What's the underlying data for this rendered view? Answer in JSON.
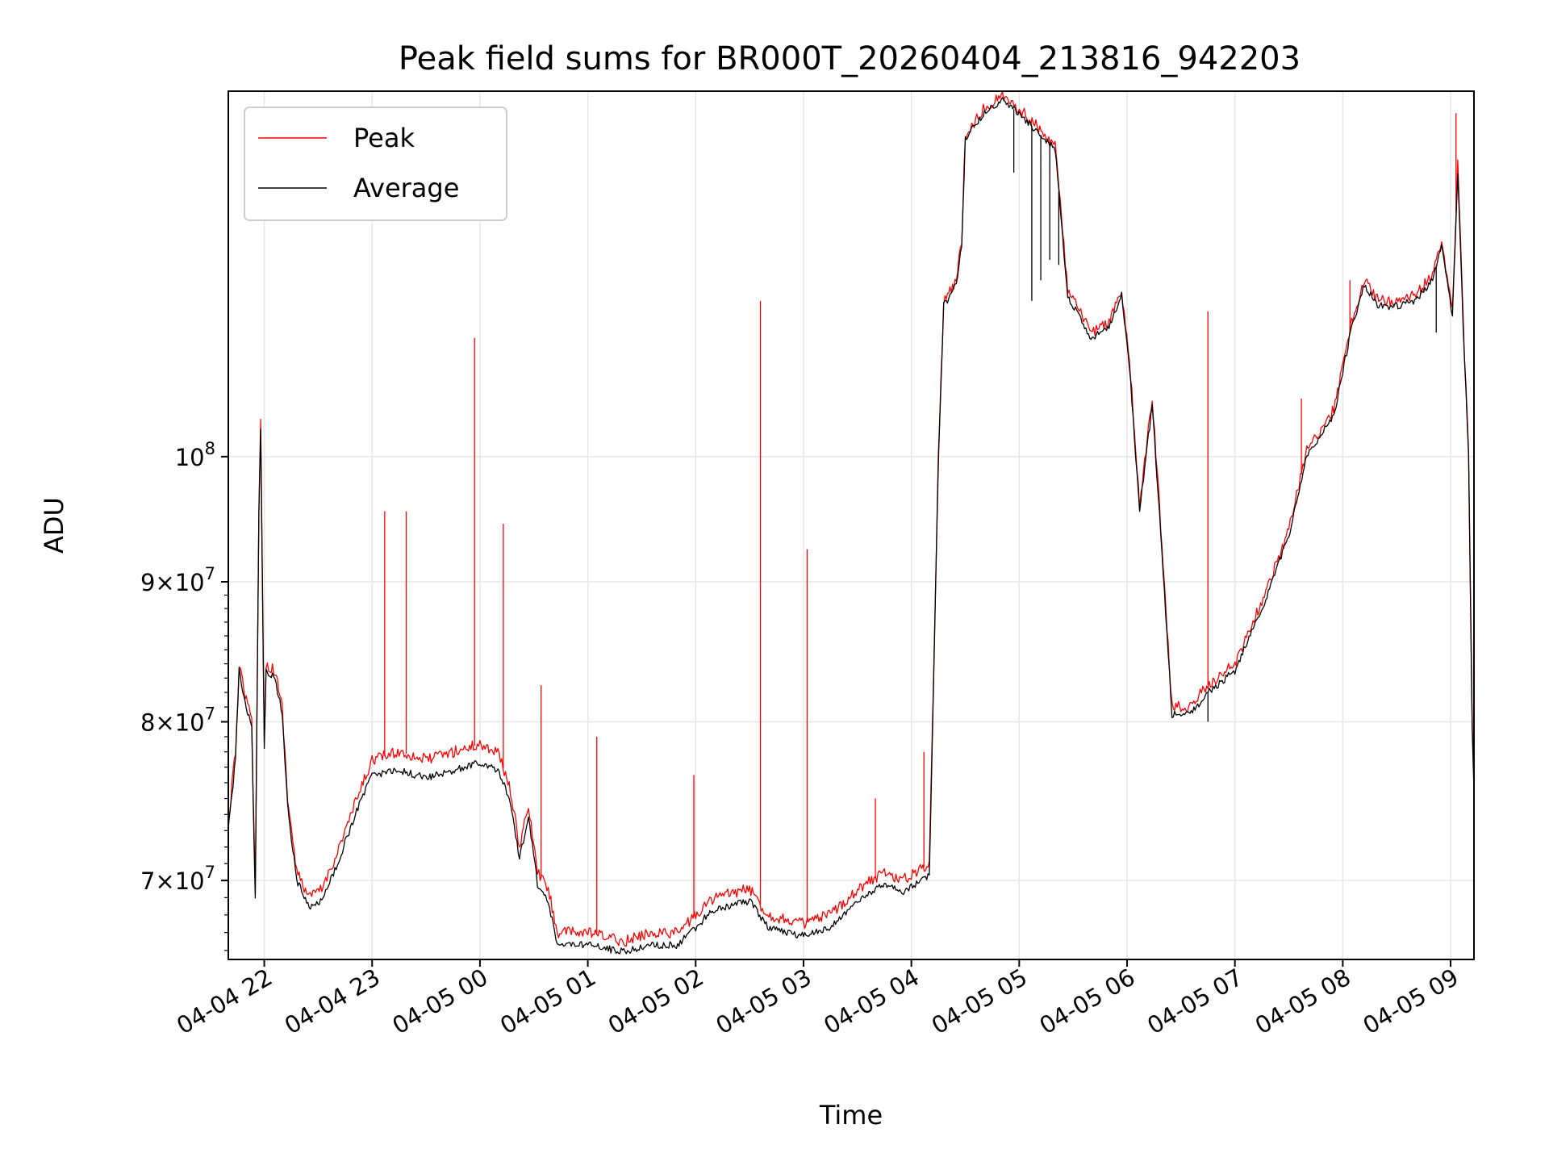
{
  "chart_data": {
    "type": "line",
    "title": "Peak field sums for BR000T_20260404_213816_942203",
    "xlabel": "Time",
    "ylabel": "ADU",
    "x_range": [
      "2026-04-04 21:40",
      "2026-04-05 09:13"
    ],
    "y_range": [
      65500000,
      136000000
    ],
    "y_scale": "log",
    "grid": true,
    "legend_position": "upper-left",
    "x_ticks": [
      {
        "t": "2026-04-04 22:00",
        "label": "04-04 22"
      },
      {
        "t": "2026-04-04 23:00",
        "label": "04-04 23"
      },
      {
        "t": "2026-04-05 00:00",
        "label": "04-05 00"
      },
      {
        "t": "2026-04-05 01:00",
        "label": "04-05 01"
      },
      {
        "t": "2026-04-05 02:00",
        "label": "04-05 02"
      },
      {
        "t": "2026-04-05 03:00",
        "label": "04-05 03"
      },
      {
        "t": "2026-04-05 04:00",
        "label": "04-05 04"
      },
      {
        "t": "2026-04-05 05:00",
        "label": "04-05 05"
      },
      {
        "t": "2026-04-05 06:00",
        "label": "04-05 06"
      },
      {
        "t": "2026-04-05 07:00",
        "label": "04-05 07"
      },
      {
        "t": "2026-04-05 08:00",
        "label": "04-05 08"
      },
      {
        "t": "2026-04-05 09:00",
        "label": "04-05 09"
      }
    ],
    "y_ticks": [
      {
        "value": 70000000,
        "mantissa": "7",
        "times": "×",
        "base": "10",
        "exp": "7"
      },
      {
        "value": 80000000,
        "mantissa": "8",
        "times": "×",
        "base": "10",
        "exp": "7"
      },
      {
        "value": 90000000,
        "mantissa": "9",
        "times": "×",
        "base": "10",
        "exp": "7"
      },
      {
        "value": 100000000,
        "mantissa": "",
        "times": "",
        "base": "10",
        "exp": "8"
      }
    ],
    "series": [
      {
        "name": "Peak",
        "color": "#ff0000",
        "points": [
          [
            "2026-04-04 21:40",
            73500000
          ],
          [
            "2026-04-04 21:44",
            78000000
          ],
          [
            "2026-04-04 21:46",
            84000000
          ],
          [
            "2026-04-04 21:50",
            81500000
          ],
          [
            "2026-04-04 21:53",
            80000000
          ],
          [
            "2026-04-04 21:55",
            69500000
          ],
          [
            "2026-04-04 21:57",
            96000000
          ],
          [
            "2026-04-04 21:58",
            103000000
          ],
          [
            "2026-04-04 22:00",
            78500000
          ],
          [
            "2026-04-04 22:01",
            84000000
          ],
          [
            "2026-04-04 22:06",
            83500000
          ],
          [
            "2026-04-04 22:10",
            81000000
          ],
          [
            "2026-04-04 22:13",
            75000000
          ],
          [
            "2026-04-04 22:18",
            70500000
          ],
          [
            "2026-04-04 22:25",
            69000000
          ],
          [
            "2026-04-04 22:32",
            69500000
          ],
          [
            "2026-04-04 22:40",
            71500000
          ],
          [
            "2026-04-04 22:50",
            74500000
          ],
          [
            "2026-04-04 23:00",
            77500000
          ],
          [
            "2026-04-04 23:15",
            78000000
          ],
          [
            "2026-04-04 23:30",
            77500000
          ],
          [
            "2026-04-04 23:45",
            78000000
          ],
          [
            "2026-04-05 00:00",
            78500000
          ],
          [
            "2026-04-05 00:10",
            78000000
          ],
          [
            "2026-04-05 00:17",
            75500000
          ],
          [
            "2026-04-05 00:22",
            72000000
          ],
          [
            "2026-04-05 00:27",
            74500000
          ],
          [
            "2026-04-05 00:32",
            70500000
          ],
          [
            "2026-04-05 00:38",
            69500000
          ],
          [
            "2026-04-05 00:43",
            67000000
          ],
          [
            "2026-04-05 01:00",
            67000000
          ],
          [
            "2026-04-05 01:20",
            66500000
          ],
          [
            "2026-04-05 01:35",
            67000000
          ],
          [
            "2026-04-05 01:50",
            67000000
          ],
          [
            "2026-04-05 02:10",
            69000000
          ],
          [
            "2026-04-05 02:30",
            69500000
          ],
          [
            "2026-04-05 02:40",
            68000000
          ],
          [
            "2026-04-05 03:00",
            67500000
          ],
          [
            "2026-04-05 03:15",
            68000000
          ],
          [
            "2026-04-05 03:30",
            69500000
          ],
          [
            "2026-04-05 03:45",
            70500000
          ],
          [
            "2026-04-05 03:55",
            70000000
          ],
          [
            "2026-04-05 04:10",
            71000000
          ],
          [
            "2026-04-05 04:15",
            100000000
          ],
          [
            "2026-04-05 04:18",
            114000000
          ],
          [
            "2026-04-05 04:25",
            116000000
          ],
          [
            "2026-04-05 04:28",
            120000000
          ],
          [
            "2026-04-05 04:30",
            131000000
          ],
          [
            "2026-04-05 04:40",
            134000000
          ],
          [
            "2026-04-05 04:50",
            135500000
          ],
          [
            "2026-04-05 05:00",
            134000000
          ],
          [
            "2026-04-05 05:10",
            132000000
          ],
          [
            "2026-04-05 05:20",
            130000000
          ],
          [
            "2026-04-05 05:27",
            115000000
          ],
          [
            "2026-04-05 05:40",
            111000000
          ],
          [
            "2026-04-05 05:50",
            112000000
          ],
          [
            "2026-04-05 05:57",
            115000000
          ],
          [
            "2026-04-05 06:02",
            107000000
          ],
          [
            "2026-04-05 06:07",
            96000000
          ],
          [
            "2026-04-05 06:14",
            105000000
          ],
          [
            "2026-04-05 06:18",
            96000000
          ],
          [
            "2026-04-05 06:25",
            81000000
          ],
          [
            "2026-04-05 06:35",
            81000000
          ],
          [
            "2026-04-05 06:45",
            82500000
          ],
          [
            "2026-04-05 07:00",
            84000000
          ],
          [
            "2026-04-05 07:15",
            88500000
          ],
          [
            "2026-04-05 07:30",
            94000000
          ],
          [
            "2026-04-05 07:40",
            100500000
          ],
          [
            "2026-04-05 07:55",
            104000000
          ],
          [
            "2026-04-05 08:05",
            112000000
          ],
          [
            "2026-04-05 08:12",
            116000000
          ],
          [
            "2026-04-05 08:20",
            114000000
          ],
          [
            "2026-04-05 08:30",
            114000000
          ],
          [
            "2026-04-05 08:40",
            114500000
          ],
          [
            "2026-04-05 08:50",
            116500000
          ],
          [
            "2026-04-05 08:55",
            120000000
          ],
          [
            "2026-04-05 09:01",
            113000000
          ],
          [
            "2026-04-05 09:04",
            128000000
          ],
          [
            "2026-04-05 09:07",
            112000000
          ],
          [
            "2026-04-05 09:10",
            100500000
          ],
          [
            "2026-04-05 09:12",
            80000000
          ],
          [
            "2026-04-05 09:13",
            76000000
          ]
        ],
        "spikes": [
          [
            "2026-04-04 23:07",
            95500000
          ],
          [
            "2026-04-04 23:19",
            95500000
          ],
          [
            "2026-04-04 23:57",
            110500000
          ],
          [
            "2026-04-05 00:13",
            94500000
          ],
          [
            "2026-04-05 00:34",
            82500000
          ],
          [
            "2026-04-05 01:05",
            79000000
          ],
          [
            "2026-04-05 01:59",
            76500000
          ],
          [
            "2026-04-05 02:36",
            114000000
          ],
          [
            "2026-04-05 03:02",
            92500000
          ],
          [
            "2026-04-05 03:40",
            75000000
          ],
          [
            "2026-04-05 04:07",
            78000000
          ],
          [
            "2026-04-05 06:45",
            113000000
          ],
          [
            "2026-04-05 07:37",
            105000000
          ],
          [
            "2026-04-05 08:04",
            116000000
          ],
          [
            "2026-04-05 09:03",
            133500000
          ]
        ]
      },
      {
        "name": "Average",
        "color": "#000000",
        "points": [
          [
            "2026-04-04 21:40",
            73000000
          ],
          [
            "2026-04-04 21:44",
            77500000
          ],
          [
            "2026-04-04 21:46",
            83500000
          ],
          [
            "2026-04-04 21:50",
            81000000
          ],
          [
            "2026-04-04 21:53",
            79500000
          ],
          [
            "2026-04-04 21:55",
            69000000
          ],
          [
            "2026-04-04 21:57",
            95500000
          ],
          [
            "2026-04-04 21:58",
            102500000
          ],
          [
            "2026-04-04 22:00",
            78000000
          ],
          [
            "2026-04-04 22:01",
            83500000
          ],
          [
            "2026-04-04 22:06",
            83000000
          ],
          [
            "2026-04-04 22:10",
            80500000
          ],
          [
            "2026-04-04 22:13",
            74500000
          ],
          [
            "2026-04-04 22:18",
            70000000
          ],
          [
            "2026-04-04 22:25",
            68500000
          ],
          [
            "2026-04-04 22:32",
            68800000
          ],
          [
            "2026-04-04 22:40",
            70800000
          ],
          [
            "2026-04-04 22:50",
            73800000
          ],
          [
            "2026-04-04 23:00",
            76500000
          ],
          [
            "2026-04-04 23:15",
            76800000
          ],
          [
            "2026-04-04 23:30",
            76300000
          ],
          [
            "2026-04-04 23:45",
            76800000
          ],
          [
            "2026-04-05 00:00",
            77300000
          ],
          [
            "2026-04-05 00:10",
            76800000
          ],
          [
            "2026-04-05 00:17",
            74800000
          ],
          [
            "2026-04-05 00:22",
            71300000
          ],
          [
            "2026-04-05 00:27",
            73800000
          ],
          [
            "2026-04-05 00:32",
            69800000
          ],
          [
            "2026-04-05 00:38",
            68800000
          ],
          [
            "2026-04-05 00:43",
            66300000
          ],
          [
            "2026-04-05 01:00",
            66300000
          ],
          [
            "2026-04-05 01:20",
            65900000
          ],
          [
            "2026-04-05 01:35",
            66300000
          ],
          [
            "2026-04-05 01:50",
            66300000
          ],
          [
            "2026-04-05 02:10",
            68300000
          ],
          [
            "2026-04-05 02:30",
            68800000
          ],
          [
            "2026-04-05 02:40",
            67300000
          ],
          [
            "2026-04-05 03:00",
            66800000
          ],
          [
            "2026-04-05 03:15",
            67300000
          ],
          [
            "2026-04-05 03:30",
            68800000
          ],
          [
            "2026-04-05 03:45",
            69800000
          ],
          [
            "2026-04-05 03:55",
            69300000
          ],
          [
            "2026-04-05 04:10",
            70300000
          ],
          [
            "2026-04-05 04:15",
            99500000
          ],
          [
            "2026-04-05 04:18",
            113500000
          ],
          [
            "2026-04-05 04:25",
            115500000
          ],
          [
            "2026-04-05 04:28",
            119500000
          ],
          [
            "2026-04-05 04:30",
            130500000
          ],
          [
            "2026-04-05 04:40",
            133500000
          ],
          [
            "2026-04-05 04:50",
            135000000
          ],
          [
            "2026-04-05 05:00",
            133500000
          ],
          [
            "2026-04-05 05:10",
            131500000
          ],
          [
            "2026-04-05 05:20",
            129500000
          ],
          [
            "2026-04-05 05:27",
            114500000
          ],
          [
            "2026-04-05 05:40",
            110500000
          ],
          [
            "2026-04-05 05:50",
            111500000
          ],
          [
            "2026-04-05 05:57",
            114500000
          ],
          [
            "2026-04-05 06:02",
            106500000
          ],
          [
            "2026-04-05 06:07",
            95500000
          ],
          [
            "2026-04-05 06:14",
            104500000
          ],
          [
            "2026-04-05 06:18",
            95500000
          ],
          [
            "2026-04-05 06:25",
            80500000
          ],
          [
            "2026-04-05 06:35",
            80500000
          ],
          [
            "2026-04-05 06:45",
            82000000
          ],
          [
            "2026-04-05 07:00",
            83500000
          ],
          [
            "2026-04-05 07:15",
            88000000
          ],
          [
            "2026-04-05 07:30",
            93500000
          ],
          [
            "2026-04-05 07:40",
            100000000
          ],
          [
            "2026-04-05 07:55",
            103500000
          ],
          [
            "2026-04-05 08:05",
            111500000
          ],
          [
            "2026-04-05 08:12",
            115500000
          ],
          [
            "2026-04-05 08:20",
            113500000
          ],
          [
            "2026-04-05 08:30",
            113500000
          ],
          [
            "2026-04-05 08:40",
            114000000
          ],
          [
            "2026-04-05 08:50",
            116000000
          ],
          [
            "2026-04-05 08:55",
            119500000
          ],
          [
            "2026-04-05 09:01",
            112500000
          ],
          [
            "2026-04-05 09:04",
            127000000
          ],
          [
            "2026-04-05 09:07",
            111500000
          ],
          [
            "2026-04-05 09:10",
            100000000
          ],
          [
            "2026-04-05 09:12",
            79500000
          ],
          [
            "2026-04-05 09:13",
            75500000
          ]
        ],
        "spikes": [
          [
            "2026-04-05 04:57",
            127000000
          ],
          [
            "2026-04-05 05:07",
            114000000
          ],
          [
            "2026-04-05 05:12",
            116000000
          ],
          [
            "2026-04-05 05:17",
            118000000
          ],
          [
            "2026-04-05 05:22",
            117500000
          ],
          [
            "2026-04-05 06:45",
            80000000
          ],
          [
            "2026-04-05 08:52",
            111000000
          ]
        ]
      }
    ]
  }
}
